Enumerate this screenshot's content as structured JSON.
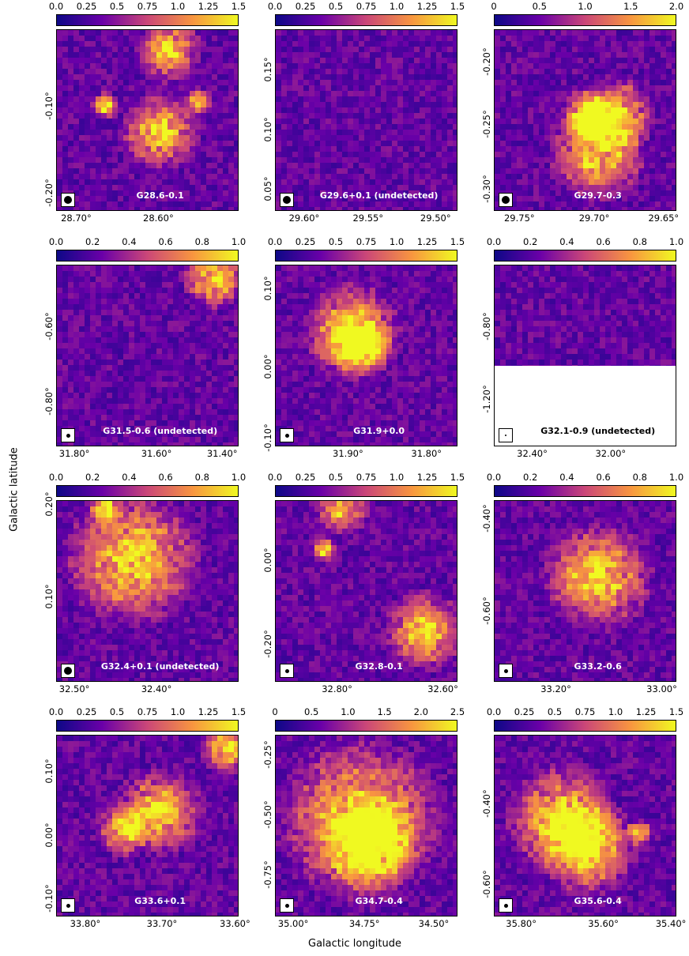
{
  "axes": {
    "xlabel": "Galactic longitude",
    "ylabel": "Galactic latitude"
  },
  "chart_data": [
    {
      "type": "heatmap",
      "label": "G28.6-0.1",
      "colorbar_ticks": [
        "0.0",
        "0.25",
        "0.5",
        "0.75",
        "1.0",
        "1.25",
        "1.5"
      ],
      "clim": [
        0,
        1.5
      ],
      "xticks": [
        "28.70°",
        "28.60°"
      ],
      "yticks": [
        "-0.10°",
        "-0.20°"
      ],
      "blank_lower": false,
      "beam": "large"
    },
    {
      "type": "heatmap",
      "label": "G29.6+0.1 (undetected)",
      "colorbar_ticks": [
        "0.0",
        "0.25",
        "0.5",
        "0.75",
        "1.0",
        "1.25",
        "1.5"
      ],
      "clim": [
        0,
        1.5
      ],
      "xticks": [
        "29.60°",
        "29.55°",
        "29.50°"
      ],
      "yticks": [
        "0.15°",
        "0.10°",
        "0.05°"
      ],
      "blank_lower": false,
      "beam": "large"
    },
    {
      "type": "heatmap",
      "label": "G29.7-0.3",
      "colorbar_ticks": [
        "0",
        "0.5",
        "1.0",
        "1.5",
        "2.0"
      ],
      "clim": [
        0,
        2.0
      ],
      "xticks": [
        "29.75°",
        "29.70°",
        "29.65°"
      ],
      "yticks": [
        "-0.20°",
        "-0.25°",
        "-0.30°"
      ],
      "blank_lower": false,
      "beam": "large"
    },
    {
      "type": "heatmap",
      "label": "G31.5-0.6 (undetected)",
      "colorbar_ticks": [
        "0.0",
        "0.2",
        "0.4",
        "0.6",
        "0.8",
        "1.0"
      ],
      "clim": [
        0,
        1.0
      ],
      "xticks": [
        "31.80°",
        "31.60°",
        "31.40°"
      ],
      "yticks": [
        "-0.60°",
        "-0.80°"
      ],
      "blank_lower": false,
      "beam": "small"
    },
    {
      "type": "heatmap",
      "label": "G31.9+0.0",
      "colorbar_ticks": [
        "0.0",
        "0.25",
        "0.5",
        "0.75",
        "1.0",
        "1.25",
        "1.5"
      ],
      "clim": [
        0,
        1.5
      ],
      "xticks": [
        "31.90°",
        "31.80°"
      ],
      "yticks": [
        "0.10°",
        "0.00°",
        "-0.10°"
      ],
      "blank_lower": false,
      "beam": "small"
    },
    {
      "type": "heatmap",
      "label": "G32.1-0.9 (undetected)",
      "colorbar_ticks": [
        "0.0",
        "0.2",
        "0.4",
        "0.6",
        "0.8",
        "1.0"
      ],
      "clim": [
        0,
        1.0
      ],
      "xticks": [
        "32.40°",
        "32.00°"
      ],
      "yticks": [
        "-0.80°",
        "-1.20°"
      ],
      "blank_lower": true,
      "beam": "tiny"
    },
    {
      "type": "heatmap",
      "label": "G32.4+0.1 (undetected)",
      "colorbar_ticks": [
        "0.0",
        "0.2",
        "0.4",
        "0.6",
        "0.8",
        "1.0"
      ],
      "clim": [
        0,
        1.0
      ],
      "xticks": [
        "32.50°",
        "32.40°"
      ],
      "yticks": [
        "0.20°",
        "0.10°"
      ],
      "blank_lower": false,
      "beam": "large"
    },
    {
      "type": "heatmap",
      "label": "G32.8-0.1",
      "colorbar_ticks": [
        "0.0",
        "0.25",
        "0.5",
        "0.75",
        "1.0",
        "1.25",
        "1.5"
      ],
      "clim": [
        0,
        1.5
      ],
      "xticks": [
        "32.80°",
        "32.60°"
      ],
      "yticks": [
        "0.00°",
        "-0.20°"
      ],
      "blank_lower": false,
      "beam": "small"
    },
    {
      "type": "heatmap",
      "label": "G33.2-0.6",
      "colorbar_ticks": [
        "0.0",
        "0.2",
        "0.4",
        "0.6",
        "0.8",
        "1.0"
      ],
      "clim": [
        0,
        1.0
      ],
      "xticks": [
        "33.20°",
        "33.00°"
      ],
      "yticks": [
        "-0.40°",
        "-0.60°"
      ],
      "blank_lower": false,
      "beam": "small"
    },
    {
      "type": "heatmap",
      "label": "G33.6+0.1",
      "colorbar_ticks": [
        "0.0",
        "0.25",
        "0.5",
        "0.75",
        "1.0",
        "1.25",
        "1.5"
      ],
      "clim": [
        0,
        1.5
      ],
      "xticks": [
        "33.80°",
        "33.70°",
        "33.60°"
      ],
      "yticks": [
        "0.10°",
        "0.00°",
        "-0.10°"
      ],
      "blank_lower": false,
      "beam": "small"
    },
    {
      "type": "heatmap",
      "label": "G34.7-0.4",
      "colorbar_ticks": [
        "0",
        "0.5",
        "1.0",
        "1.5",
        "2.0",
        "2.5"
      ],
      "clim": [
        0,
        2.5
      ],
      "xticks": [
        "35.00°",
        "34.75°",
        "34.50°"
      ],
      "yticks": [
        "-0.25°",
        "-0.50°",
        "-0.75°"
      ],
      "blank_lower": false,
      "beam": "small"
    },
    {
      "type": "heatmap",
      "label": "G35.6-0.4",
      "colorbar_ticks": [
        "0.0",
        "0.25",
        "0.5",
        "0.75",
        "1.0",
        "1.25",
        "1.5"
      ],
      "clim": [
        0,
        1.5
      ],
      "xticks": [
        "35.80°",
        "35.60°",
        "35.40°"
      ],
      "yticks": [
        "-0.40°",
        "-0.60°"
      ],
      "blank_lower": false,
      "beam": "small"
    }
  ]
}
